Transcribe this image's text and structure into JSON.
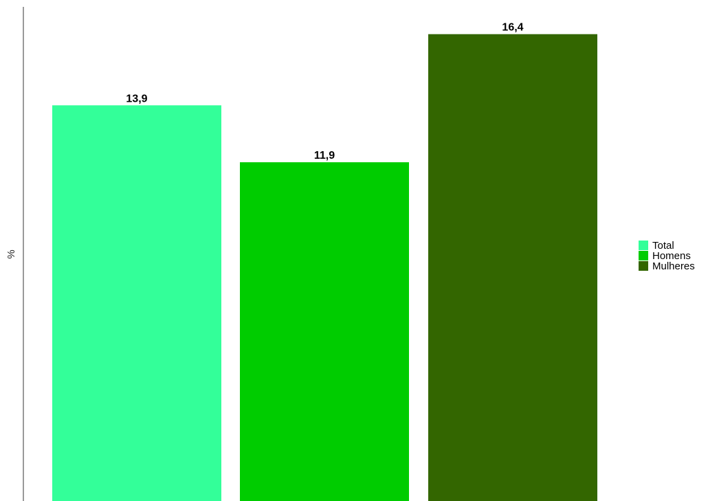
{
  "chart_data": {
    "type": "bar",
    "title": "",
    "xlabel": "",
    "ylabel": "%",
    "ylim": [
      0,
      17.6
    ],
    "grid": false,
    "legend": "right",
    "categories": [
      "Total",
      "Homens",
      "Mulheres"
    ],
    "values": [
      13.9,
      11.9,
      16.4
    ],
    "value_labels": [
      "13,9",
      "11,9",
      "16,4"
    ],
    "colors": [
      "#33ff99",
      "#00cc00",
      "#336600"
    ]
  }
}
